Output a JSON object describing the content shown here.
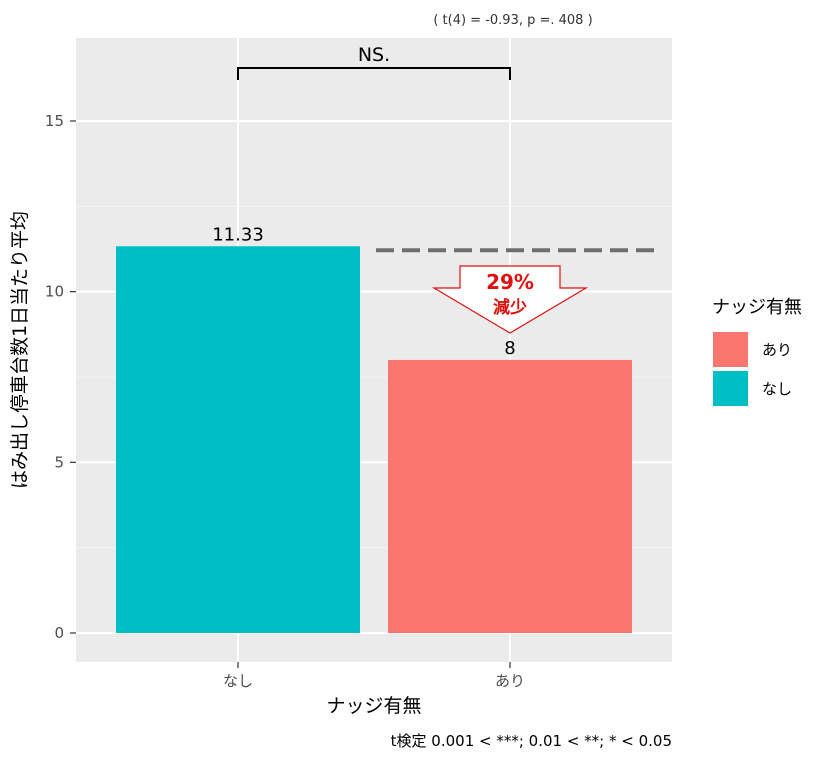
{
  "chart_data": {
    "type": "bar",
    "categories": [
      "なし",
      "あり"
    ],
    "values": [
      11.33,
      8
    ],
    "value_labels": [
      "11.33",
      "8"
    ],
    "xlabel": "ナッジ有無",
    "ylabel": "はみ出し停車台数1日当たり平均",
    "ylim": [
      0,
      17
    ],
    "yticks": [
      0,
      5,
      10,
      15
    ],
    "grid": true,
    "legend": {
      "title": "ナッジ有無",
      "placement": "right",
      "items": [
        {
          "label": "あり",
          "color": "#F8766D"
        },
        {
          "label": "なし",
          "color": "#00BFC4"
        }
      ]
    },
    "bar_colors": [
      "#00BFC4",
      "#F8766D"
    ],
    "stat_test": "( t(4) = -0.93, p =. 408 )",
    "significance_label": "NS.",
    "reference_line_value": 11.33,
    "callout": {
      "percent": "29%",
      "text": "減少"
    },
    "footnote": "t検定 0.001 < ***; 0.01 < **; * < 0.05"
  },
  "colors": {
    "panel_background": "#EBEBEB",
    "grid_major": "#FFFFFF",
    "reference_line": "#6E6E6E",
    "callout_text": "#E01010"
  }
}
